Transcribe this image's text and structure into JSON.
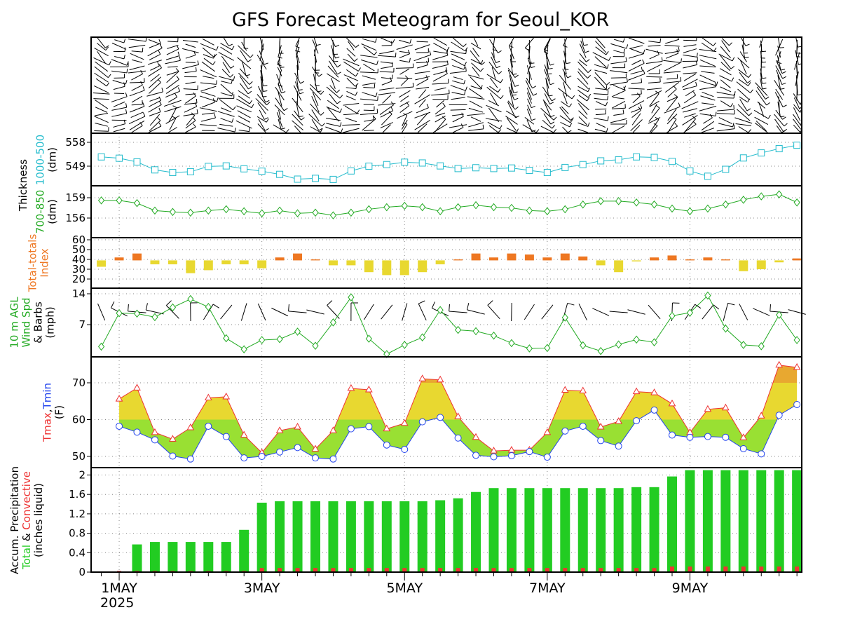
{
  "title": "GFS Forecast Meteogram for Seoul_KOR",
  "x_axis": {
    "ticks": [
      "1MAY",
      "3MAY",
      "5MAY",
      "7MAY",
      "9MAY"
    ],
    "year_label": "2025",
    "time_step_hours": 6,
    "steps": 40
  },
  "colors": {
    "thickness_1000_500": "#22bbcc",
    "thickness_700_850": "#22aa22",
    "tt_orange": "#ee7722",
    "tt_yellow": "#e8d830",
    "wind": "#22aa22",
    "tmax": "#ee3333",
    "tmin": "#2244ee",
    "fill_green": "#99e033",
    "fill_yellow": "#e8d830",
    "fill_orange": "#e8a830",
    "precip_total": "#22cc22",
    "precip_convective": "#ee3333",
    "grid": "#888888"
  },
  "panels": {
    "thickness500": {
      "ylabel_rows": [
        [
          {
            "text": "1000-500",
            "color": "#22bbcc"
          }
        ],
        [
          {
            "text": "(dm)",
            "color": "#000000"
          }
        ]
      ],
      "shared_label": "Thickness",
      "ticks": [
        "558",
        "549"
      ]
    },
    "thickness850": {
      "ylabel_rows": [
        [
          {
            "text": "700-850",
            "color": "#22aa22"
          }
        ],
        [
          {
            "text": "(dm)",
            "color": "#000000"
          }
        ]
      ],
      "ticks": [
        "159",
        "156"
      ]
    },
    "totaltotals": {
      "ylabel_rows": [
        [
          {
            "text": "Total-totals",
            "color": "#ee7722"
          }
        ],
        [
          {
            "text": "Index",
            "color": "#ee7722"
          }
        ]
      ],
      "ticks": [
        "60",
        "50",
        "40",
        "30",
        "20"
      ]
    },
    "wind": {
      "ylabel_rows": [
        [
          {
            "text": "10 m AGL",
            "color": "#22aa22"
          }
        ],
        [
          {
            "text": "Wind Spd",
            "color": "#22aa22"
          }
        ],
        [
          {
            "text": "& Barbs",
            "color": "#000000"
          }
        ],
        [
          {
            "text": "(mph)",
            "color": "#000000"
          }
        ]
      ],
      "ticks": [
        "14",
        "7"
      ]
    },
    "temperature": {
      "ylabel_rows": [
        [
          {
            "text": "Tmax",
            "color": "#ee3333"
          },
          {
            "text": ",",
            "color": "#000000"
          },
          {
            "text": "Tmin",
            "color": "#2244ee"
          }
        ],
        [
          {
            "text": "(F)",
            "color": "#000000"
          }
        ]
      ],
      "ticks": [
        "70",
        "60",
        "50"
      ]
    },
    "precipitation": {
      "ylabel_rows": [
        [
          {
            "text": "Accum. Precipitation",
            "color": "#000000"
          }
        ],
        [
          {
            "text": "Total",
            "color": "#22cc22"
          },
          {
            "text": " & ",
            "color": "#000000"
          },
          {
            "text": "Convective",
            "color": "#ee3333"
          }
        ],
        [
          {
            "text": "(inches liquid)",
            "color": "#000000"
          }
        ]
      ],
      "ticks": [
        "2",
        "1.6",
        "1.2",
        "0.8",
        "0.4",
        "0"
      ]
    }
  },
  "chart_data": [
    {
      "type": "line",
      "name": "1000-500 thickness",
      "unit": "dm",
      "step_hours": 6,
      "values": [
        552.5,
        552.0,
        550.6,
        547.6,
        546.6,
        546.9,
        548.9,
        549.1,
        548.0,
        547.1,
        545.9,
        544.1,
        544.4,
        544.0,
        547.2,
        549.0,
        549.6,
        550.5,
        550.2,
        549.1,
        548.1,
        548.4,
        548.1,
        548.3,
        547.4,
        546.6,
        548.5,
        549.6,
        551.0,
        551.4,
        552.5,
        552.3,
        550.8,
        547.2,
        545.2,
        547.8,
        552.1,
        554.0,
        555.6,
        556.9
      ]
    },
    {
      "type": "line",
      "name": "700-850 thickness",
      "unit": "dm",
      "step_hours": 6,
      "values": [
        158.6,
        158.6,
        158.2,
        157.1,
        156.9,
        156.8,
        157.1,
        157.3,
        157.0,
        156.7,
        157.1,
        156.7,
        156.8,
        156.4,
        156.8,
        157.3,
        157.6,
        157.8,
        157.6,
        157.0,
        157.6,
        157.9,
        157.6,
        157.5,
        157.1,
        157.0,
        157.3,
        158.0,
        158.5,
        158.5,
        158.3,
        158.0,
        157.4,
        157.0,
        157.4,
        158.0,
        158.7,
        159.2,
        159.5,
        158.3
      ]
    },
    {
      "type": "bar",
      "name": "Total-totals index",
      "baseline": 39,
      "step_hours": 6,
      "values": [
        32.5,
        42,
        46,
        35,
        35,
        26,
        29,
        35,
        35,
        31,
        42,
        46,
        40,
        34,
        34,
        27,
        24,
        24,
        27,
        35,
        40,
        46,
        42,
        46,
        45,
        42,
        46,
        43,
        34,
        27,
        38,
        42,
        44,
        40,
        42,
        40,
        28,
        30,
        37,
        41
      ]
    },
    {
      "type": "line",
      "name": "10 m wind speed",
      "unit": "mph",
      "step_hours": 6,
      "values": [
        2.0,
        9.6,
        9.5,
        8.7,
        10.9,
        12.8,
        11.0,
        3.9,
        1.4,
        3.5,
        3.7,
        5.4,
        2.2,
        7.5,
        13.2,
        3.8,
        0.3,
        2.4,
        4.1,
        10.3,
        5.8,
        5.5,
        4.5,
        2.8,
        1.6,
        1.7,
        8.6,
        2.3,
        1.0,
        2.5,
        3.6,
        3.0,
        9.0,
        9.7,
        13.6,
        6.1,
        2.4,
        2.1,
        9.2,
        3.5
      ]
    },
    {
      "type": "area",
      "name": "Temperature",
      "unit": "F",
      "step_hours": 6,
      "series": [
        {
          "name": "Tmax",
          "values": [
            65.6,
            68.6,
            56.5,
            54.7,
            57.8,
            65.9,
            66.2,
            55.8,
            51.0,
            57.0,
            58.0,
            52.0,
            57.0,
            68.5,
            68.1,
            57.5,
            59.0,
            71.1,
            70.8,
            60.8,
            55.2,
            51.5,
            51.7,
            51.7,
            56.5,
            68.0,
            67.8,
            58.0,
            59.5,
            67.6,
            67.3,
            64.3,
            56.5,
            62.8,
            63.2,
            55.1,
            61.0,
            74.8,
            74.2
          ]
        },
        {
          "name": "Tmin",
          "values": [
            58.2,
            56.6,
            54.5,
            50.1,
            49.3,
            58.2,
            55.4,
            49.6,
            50.0,
            51.2,
            52.4,
            49.6,
            49.3,
            57.5,
            58.1,
            53.1,
            51.9,
            59.4,
            60.6,
            55.0,
            50.3,
            49.9,
            50.2,
            51.3,
            49.8,
            56.9,
            58.2,
            54.3,
            52.8,
            59.7,
            62.6,
            55.8,
            55.2,
            55.4,
            55.2,
            52.1,
            50.7,
            61.2,
            64.1
          ]
        }
      ]
    },
    {
      "type": "bar",
      "name": "Accumulated precipitation",
      "unit": "inches liquid",
      "step_hours": 6,
      "series": [
        {
          "name": "Total",
          "values": [
            0.0,
            0.0,
            0.57,
            0.62,
            0.62,
            0.62,
            0.62,
            0.62,
            0.87,
            1.43,
            1.46,
            1.46,
            1.46,
            1.46,
            1.46,
            1.46,
            1.46,
            1.46,
            1.46,
            1.48,
            1.52,
            1.65,
            1.73,
            1.73,
            1.73,
            1.73,
            1.73,
            1.73,
            1.73,
            1.73,
            1.75,
            1.75,
            1.97,
            2.1,
            2.1,
            2.1,
            2.1,
            2.1,
            2.1,
            2.1
          ]
        },
        {
          "name": "Convective",
          "values": [
            0.0,
            0.01,
            0.01,
            0.01,
            0.01,
            0.01,
            0.01,
            0.01,
            0.01,
            0.07,
            0.07,
            0.07,
            0.07,
            0.07,
            0.07,
            0.07,
            0.07,
            0.07,
            0.07,
            0.07,
            0.07,
            0.07,
            0.07,
            0.07,
            0.07,
            0.07,
            0.07,
            0.07,
            0.07,
            0.07,
            0.07,
            0.07,
            0.1,
            0.1,
            0.1,
            0.1,
            0.1,
            0.1,
            0.1,
            0.1
          ]
        }
      ]
    }
  ]
}
